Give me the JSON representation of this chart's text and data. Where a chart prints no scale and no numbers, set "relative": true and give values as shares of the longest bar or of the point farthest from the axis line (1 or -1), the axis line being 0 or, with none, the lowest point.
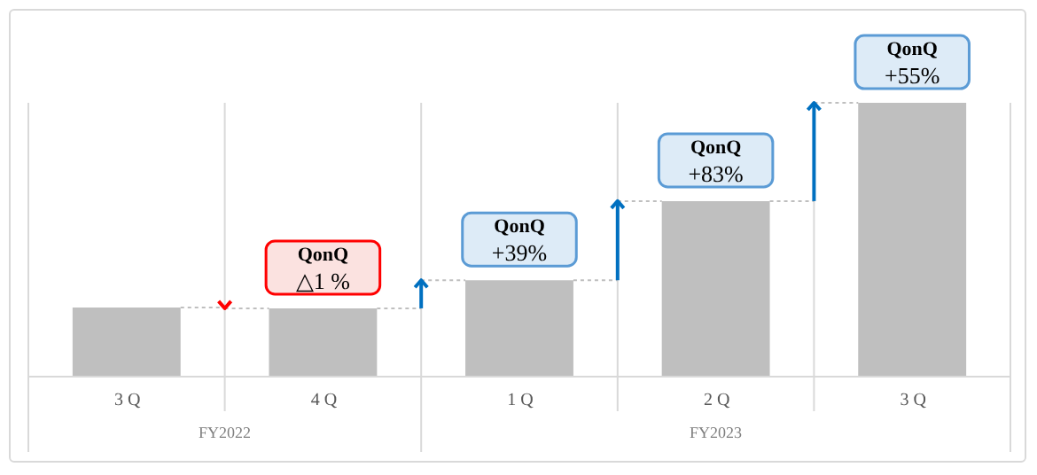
{
  "chart_data": {
    "type": "bar",
    "relative": true,
    "color": "#bfbfbf",
    "grid": "x",
    "categories": [
      "3 Q",
      "4 Q",
      "1 Q",
      "2 Q",
      "3 Q"
    ],
    "values": [
      0.25,
      0.247,
      0.35,
      0.64,
      1
    ],
    "annotations": [
      {
        "text": "QonQ",
        "x": "4 Q",
        "y": 0.247
      },
      {
        "text": "△1 %",
        "x": "4 Q",
        "y": 0.247
      },
      {
        "text": "QonQ",
        "x": "1 Q",
        "y": 0.35
      },
      {
        "text": "+39%",
        "x": "1 Q",
        "y": 0.35
      },
      {
        "text": "QonQ",
        "x": "2 Q",
        "y": 0.64
      },
      {
        "text": "+83%",
        "x": "2 Q",
        "y": 0.64
      },
      {
        "text": "QonQ",
        "y": 1
      },
      {
        "text": "+55%",
        "y": 1
      },
      "FY2022",
      "FY2023"
    ]
  }
}
